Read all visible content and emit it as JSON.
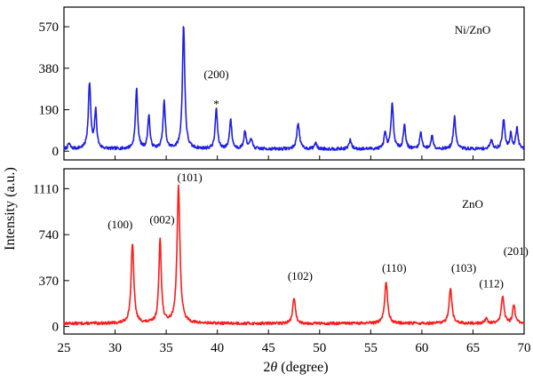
{
  "chart_data": [
    {
      "type": "line",
      "panel": "top",
      "label": "Ni/ZnO",
      "xlim": [
        25,
        70
      ],
      "ylim": [
        -40,
        660
      ],
      "yticks": [
        0,
        190,
        380,
        570
      ],
      "ytick_labels": [
        "0",
        "190",
        "380",
        "570"
      ],
      "color": "#1e1ee6",
      "baseline": 10,
      "noise": 7,
      "seed": 7,
      "peaks": [
        {
          "x": 25.5,
          "h": 25,
          "w": 0.12
        },
        {
          "x": 27.5,
          "h": 300,
          "w": 0.14
        },
        {
          "x": 28.1,
          "h": 175,
          "w": 0.12
        },
        {
          "x": 32.1,
          "h": 275,
          "w": 0.13
        },
        {
          "x": 33.3,
          "h": 155,
          "w": 0.12
        },
        {
          "x": 34.8,
          "h": 215,
          "w": 0.13
        },
        {
          "x": 36.7,
          "h": 565,
          "w": 0.14
        },
        {
          "x": 39.9,
          "h": 185,
          "w": 0.13
        },
        {
          "x": 41.3,
          "h": 135,
          "w": 0.13
        },
        {
          "x": 42.7,
          "h": 80,
          "w": 0.13
        },
        {
          "x": 43.3,
          "h": 50,
          "w": 0.12
        },
        {
          "x": 47.9,
          "h": 120,
          "w": 0.15
        },
        {
          "x": 49.6,
          "h": 30,
          "w": 0.12
        },
        {
          "x": 53.0,
          "h": 40,
          "w": 0.14
        },
        {
          "x": 56.4,
          "h": 70,
          "w": 0.13
        },
        {
          "x": 57.1,
          "h": 205,
          "w": 0.14
        },
        {
          "x": 58.3,
          "h": 110,
          "w": 0.13
        },
        {
          "x": 59.9,
          "h": 75,
          "w": 0.13
        },
        {
          "x": 61.0,
          "h": 60,
          "w": 0.13
        },
        {
          "x": 63.2,
          "h": 145,
          "w": 0.14
        },
        {
          "x": 66.8,
          "h": 40,
          "w": 0.14
        },
        {
          "x": 68.0,
          "h": 135,
          "w": 0.14
        },
        {
          "x": 68.7,
          "h": 70,
          "w": 0.12
        },
        {
          "x": 69.3,
          "h": 95,
          "w": 0.13
        }
      ],
      "annotations": [
        {
          "text": "(200)",
          "x": 39.9,
          "y": 335
        },
        {
          "text": "*",
          "x": 39.9,
          "y": 230
        }
      ]
    },
    {
      "type": "line",
      "panel": "bottom",
      "label": "ZnO",
      "xlim": [
        25,
        70
      ],
      "ylim": [
        -60,
        1270
      ],
      "yticks": [
        0,
        370,
        740,
        1110
      ],
      "ytick_labels": [
        "0",
        "370",
        "740",
        "1110"
      ],
      "color": "#ff1a1a",
      "baseline": 25,
      "noise": 11,
      "seed": 13,
      "peaks": [
        {
          "x": 31.7,
          "h": 640,
          "w": 0.16
        },
        {
          "x": 34.4,
          "h": 680,
          "w": 0.14
        },
        {
          "x": 36.2,
          "h": 1100,
          "w": 0.17
        },
        {
          "x": 47.5,
          "h": 210,
          "w": 0.15
        },
        {
          "x": 56.5,
          "h": 330,
          "w": 0.17
        },
        {
          "x": 62.8,
          "h": 280,
          "w": 0.16
        },
        {
          "x": 66.3,
          "h": 40,
          "w": 0.14
        },
        {
          "x": 67.9,
          "h": 220,
          "w": 0.16
        },
        {
          "x": 69.0,
          "h": 150,
          "w": 0.14
        }
      ],
      "annotations": [
        {
          "text": "(100)",
          "x": 30.5,
          "y": 790
        },
        {
          "text": "(002)",
          "x": 34.6,
          "y": 830
        },
        {
          "text": "(101)",
          "x": 37.3,
          "y": 1170
        },
        {
          "text": "(102)",
          "x": 48.1,
          "y": 375
        },
        {
          "text": "(110)",
          "x": 57.3,
          "y": 440
        },
        {
          "text": "(103)",
          "x": 64.1,
          "y": 440
        },
        {
          "text": "(112)",
          "x": 66.8,
          "y": 315
        },
        {
          "text": "(201)",
          "x": 69.2,
          "y": 575
        }
      ]
    }
  ],
  "shared": {
    "xticks": [
      25,
      30,
      35,
      40,
      45,
      50,
      55,
      60,
      65,
      70
    ],
    "xtick_labels": [
      "25",
      "30",
      "35",
      "40",
      "45",
      "50",
      "55",
      "60",
      "65",
      "70"
    ],
    "xlabel": "2θ (degree)",
    "ylabel": "Intensity (a.u.)"
  }
}
